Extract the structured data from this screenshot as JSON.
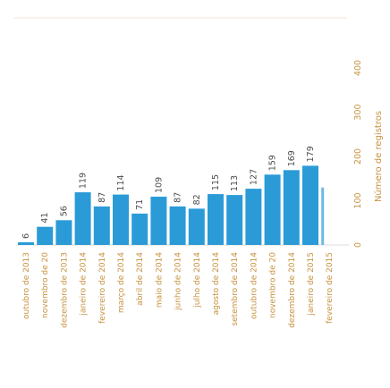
{
  "chart_data": {
    "type": "bar",
    "orientation": "vertical",
    "categories": [
      "outubro de 2013",
      "novembro de 20",
      "dezembro de 2013",
      "janeiro de 2014",
      "fevereiro de 2014",
      "março de 2014",
      "abril de 2014",
      "maio de 2014",
      "junho de 2014",
      "julho de 2014",
      "agosto de 2014",
      "setembro de 2014",
      "outubro de 2014",
      "novembro de 20",
      "dezembro de 2014",
      "janeiro de 2015",
      "fevereiro de 2015"
    ],
    "values": [
      6,
      41,
      56,
      119,
      87,
      114,
      71,
      109,
      87,
      82,
      115,
      113,
      127,
      159,
      169,
      179,
      130
    ],
    "value_labels": [
      "6",
      "41",
      "56",
      "119",
      "87",
      "114",
      "71",
      "109",
      "87",
      "82",
      "115",
      "113",
      "127",
      "159",
      "169",
      "179",
      ""
    ],
    "ylabel": "Número de registros",
    "y_ticks": [
      "0",
      "100",
      "200",
      "300",
      "400"
    ],
    "ylim": [
      0,
      400
    ],
    "grid": false,
    "legend": "none",
    "colors": {
      "bar": "#2b9bd8",
      "bar_faded": "#6fb9e4",
      "value_label": "#4a4a4a",
      "tick_label": "#c7923e",
      "axis_title": "#c7923e",
      "baseline": "#dcdcdc"
    }
  }
}
